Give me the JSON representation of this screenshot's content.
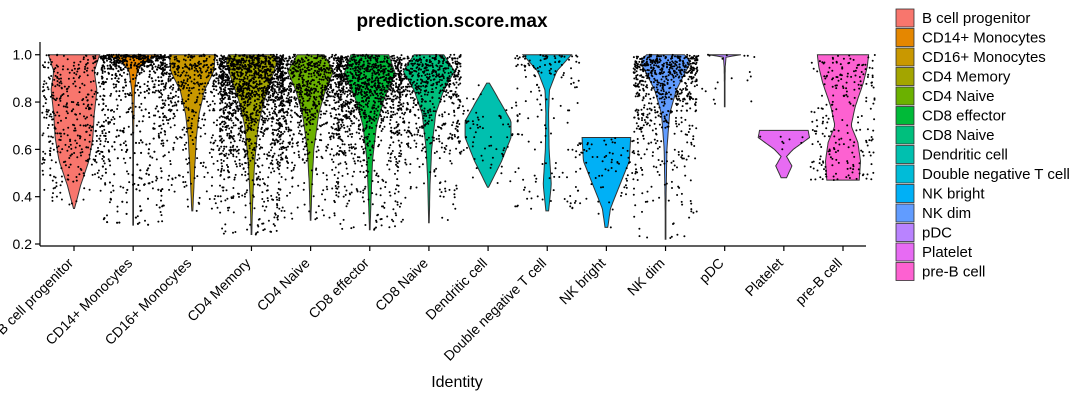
{
  "chart_data": {
    "type": "violin",
    "title": "prediction.score.max",
    "xlabel": "Identity",
    "ylabel": "",
    "ylim": [
      0.2,
      1.02
    ],
    "yticks": [
      0.2,
      0.4,
      0.6,
      0.8,
      1.0
    ],
    "ytick_labels": [
      "0.2",
      "0.4",
      "0.6",
      "0.8",
      "1.0"
    ],
    "legend_position": "right",
    "categories": [
      "B cell progenitor",
      "CD14+ Monocytes",
      "CD16+ Monocytes",
      "CD4 Memory",
      "CD4 Naive",
      "CD8 effector",
      "CD8 Naive",
      "Dendritic cell",
      "Double negative T cell",
      "NK bright",
      "NK dim",
      "pDC",
      "Platelet",
      "pre-B cell"
    ],
    "colors": [
      "#F8766D",
      "#E58700",
      "#C99800",
      "#A3A500",
      "#6BB100",
      "#00BA38",
      "#00BF7D",
      "#00C0AF",
      "#00BCD8",
      "#00B0F6",
      "#619CFF",
      "#B983FF",
      "#E76BF3",
      "#FD61D1"
    ],
    "series": [
      {
        "name": "B cell progenitor",
        "min": 0.35,
        "max": 1.0,
        "density": [
          [
            0.35,
            0.02
          ],
          [
            0.45,
            0.25
          ],
          [
            0.55,
            0.55
          ],
          [
            0.65,
            0.7
          ],
          [
            0.75,
            0.75
          ],
          [
            0.85,
            0.85
          ],
          [
            0.93,
            0.75
          ],
          [
            1.0,
            0.95
          ]
        ],
        "points": 420
      },
      {
        "name": "CD14+ Monocytes",
        "min": 0.28,
        "max": 1.0,
        "density": [
          [
            0.28,
            0.0
          ],
          [
            0.5,
            0.01
          ],
          [
            0.7,
            0.02
          ],
          [
            0.85,
            0.05
          ],
          [
            0.93,
            0.15
          ],
          [
            0.97,
            0.4
          ],
          [
            1.0,
            1.0
          ]
        ],
        "points": 900
      },
      {
        "name": "CD16+ Monocytes",
        "min": 0.34,
        "max": 1.0,
        "density": [
          [
            0.34,
            0.02
          ],
          [
            0.5,
            0.08
          ],
          [
            0.65,
            0.15
          ],
          [
            0.75,
            0.25
          ],
          [
            0.85,
            0.45
          ],
          [
            0.93,
            0.8
          ],
          [
            1.0,
            0.85
          ]
        ],
        "points": 520
      },
      {
        "name": "CD4 Memory",
        "min": 0.24,
        "max": 1.0,
        "density": [
          [
            0.24,
            0.01
          ],
          [
            0.4,
            0.05
          ],
          [
            0.55,
            0.12
          ],
          [
            0.7,
            0.25
          ],
          [
            0.8,
            0.45
          ],
          [
            0.9,
            0.75
          ],
          [
            0.97,
            0.95
          ],
          [
            1.0,
            0.85
          ]
        ],
        "points": 1500
      },
      {
        "name": "CD4 Naive",
        "min": 0.3,
        "max": 1.0,
        "density": [
          [
            0.3,
            0.01
          ],
          [
            0.45,
            0.05
          ],
          [
            0.6,
            0.12
          ],
          [
            0.75,
            0.3
          ],
          [
            0.85,
            0.55
          ],
          [
            0.93,
            0.85
          ],
          [
            1.0,
            0.5
          ]
        ],
        "points": 900
      },
      {
        "name": "CD8 effector",
        "min": 0.26,
        "max": 1.0,
        "density": [
          [
            0.26,
            0.01
          ],
          [
            0.4,
            0.05
          ],
          [
            0.55,
            0.1
          ],
          [
            0.7,
            0.25
          ],
          [
            0.82,
            0.55
          ],
          [
            0.92,
            0.95
          ],
          [
            1.0,
            0.7
          ]
        ],
        "points": 1100
      },
      {
        "name": "CD8 Naive",
        "min": 0.29,
        "max": 1.0,
        "density": [
          [
            0.29,
            0.01
          ],
          [
            0.45,
            0.04
          ],
          [
            0.6,
            0.1
          ],
          [
            0.75,
            0.25
          ],
          [
            0.85,
            0.55
          ],
          [
            0.93,
            0.95
          ],
          [
            1.0,
            0.55
          ]
        ],
        "points": 650
      },
      {
        "name": "Dendritic cell",
        "min": 0.44,
        "max": 0.88,
        "density": [
          [
            0.44,
            0.02
          ],
          [
            0.55,
            0.5
          ],
          [
            0.65,
            0.85
          ],
          [
            0.72,
            0.85
          ],
          [
            0.8,
            0.45
          ],
          [
            0.88,
            0.05
          ]
        ],
        "points": 80
      },
      {
        "name": "Double negative T cell",
        "min": 0.34,
        "max": 1.0,
        "density": [
          [
            0.34,
            0.05
          ],
          [
            0.45,
            0.15
          ],
          [
            0.6,
            0.07
          ],
          [
            0.75,
            0.05
          ],
          [
            0.85,
            0.08
          ],
          [
            0.93,
            0.35
          ],
          [
            1.0,
            0.9
          ]
        ],
        "points": 150
      },
      {
        "name": "NK bright",
        "min": 0.27,
        "max": 0.65,
        "density": [
          [
            0.27,
            0.05
          ],
          [
            0.35,
            0.15
          ],
          [
            0.45,
            0.5
          ],
          [
            0.55,
            0.85
          ],
          [
            0.65,
            0.9
          ]
        ],
        "points": 80
      },
      {
        "name": "NK dim",
        "min": 0.22,
        "max": 1.0,
        "density": [
          [
            0.22,
            0.0
          ],
          [
            0.4,
            0.02
          ],
          [
            0.6,
            0.05
          ],
          [
            0.75,
            0.15
          ],
          [
            0.85,
            0.4
          ],
          [
            0.93,
            0.75
          ],
          [
            0.97,
            0.95
          ],
          [
            1.0,
            0.7
          ]
        ],
        "points": 700
      },
      {
        "name": "pDC",
        "min": 0.78,
        "max": 1.0,
        "density": [
          [
            0.78,
            0.0
          ],
          [
            0.95,
            0.02
          ],
          [
            0.99,
            0.05
          ],
          [
            1.0,
            0.6
          ]
        ],
        "points": 20
      },
      {
        "name": "Platelet",
        "min": 0.48,
        "max": 0.68,
        "density": [
          [
            0.48,
            0.1
          ],
          [
            0.53,
            0.3
          ],
          [
            0.57,
            0.1
          ],
          [
            0.6,
            0.35
          ],
          [
            0.65,
            0.95
          ],
          [
            0.68,
            0.9
          ]
        ],
        "points": 10
      },
      {
        "name": "pre-B cell",
        "min": 0.47,
        "max": 1.0,
        "density": [
          [
            0.47,
            0.6
          ],
          [
            0.55,
            0.65
          ],
          [
            0.63,
            0.55
          ],
          [
            0.7,
            0.3
          ],
          [
            0.78,
            0.45
          ],
          [
            0.88,
            0.75
          ],
          [
            0.95,
            0.9
          ],
          [
            1.0,
            0.95
          ]
        ],
        "points": 230
      }
    ]
  }
}
